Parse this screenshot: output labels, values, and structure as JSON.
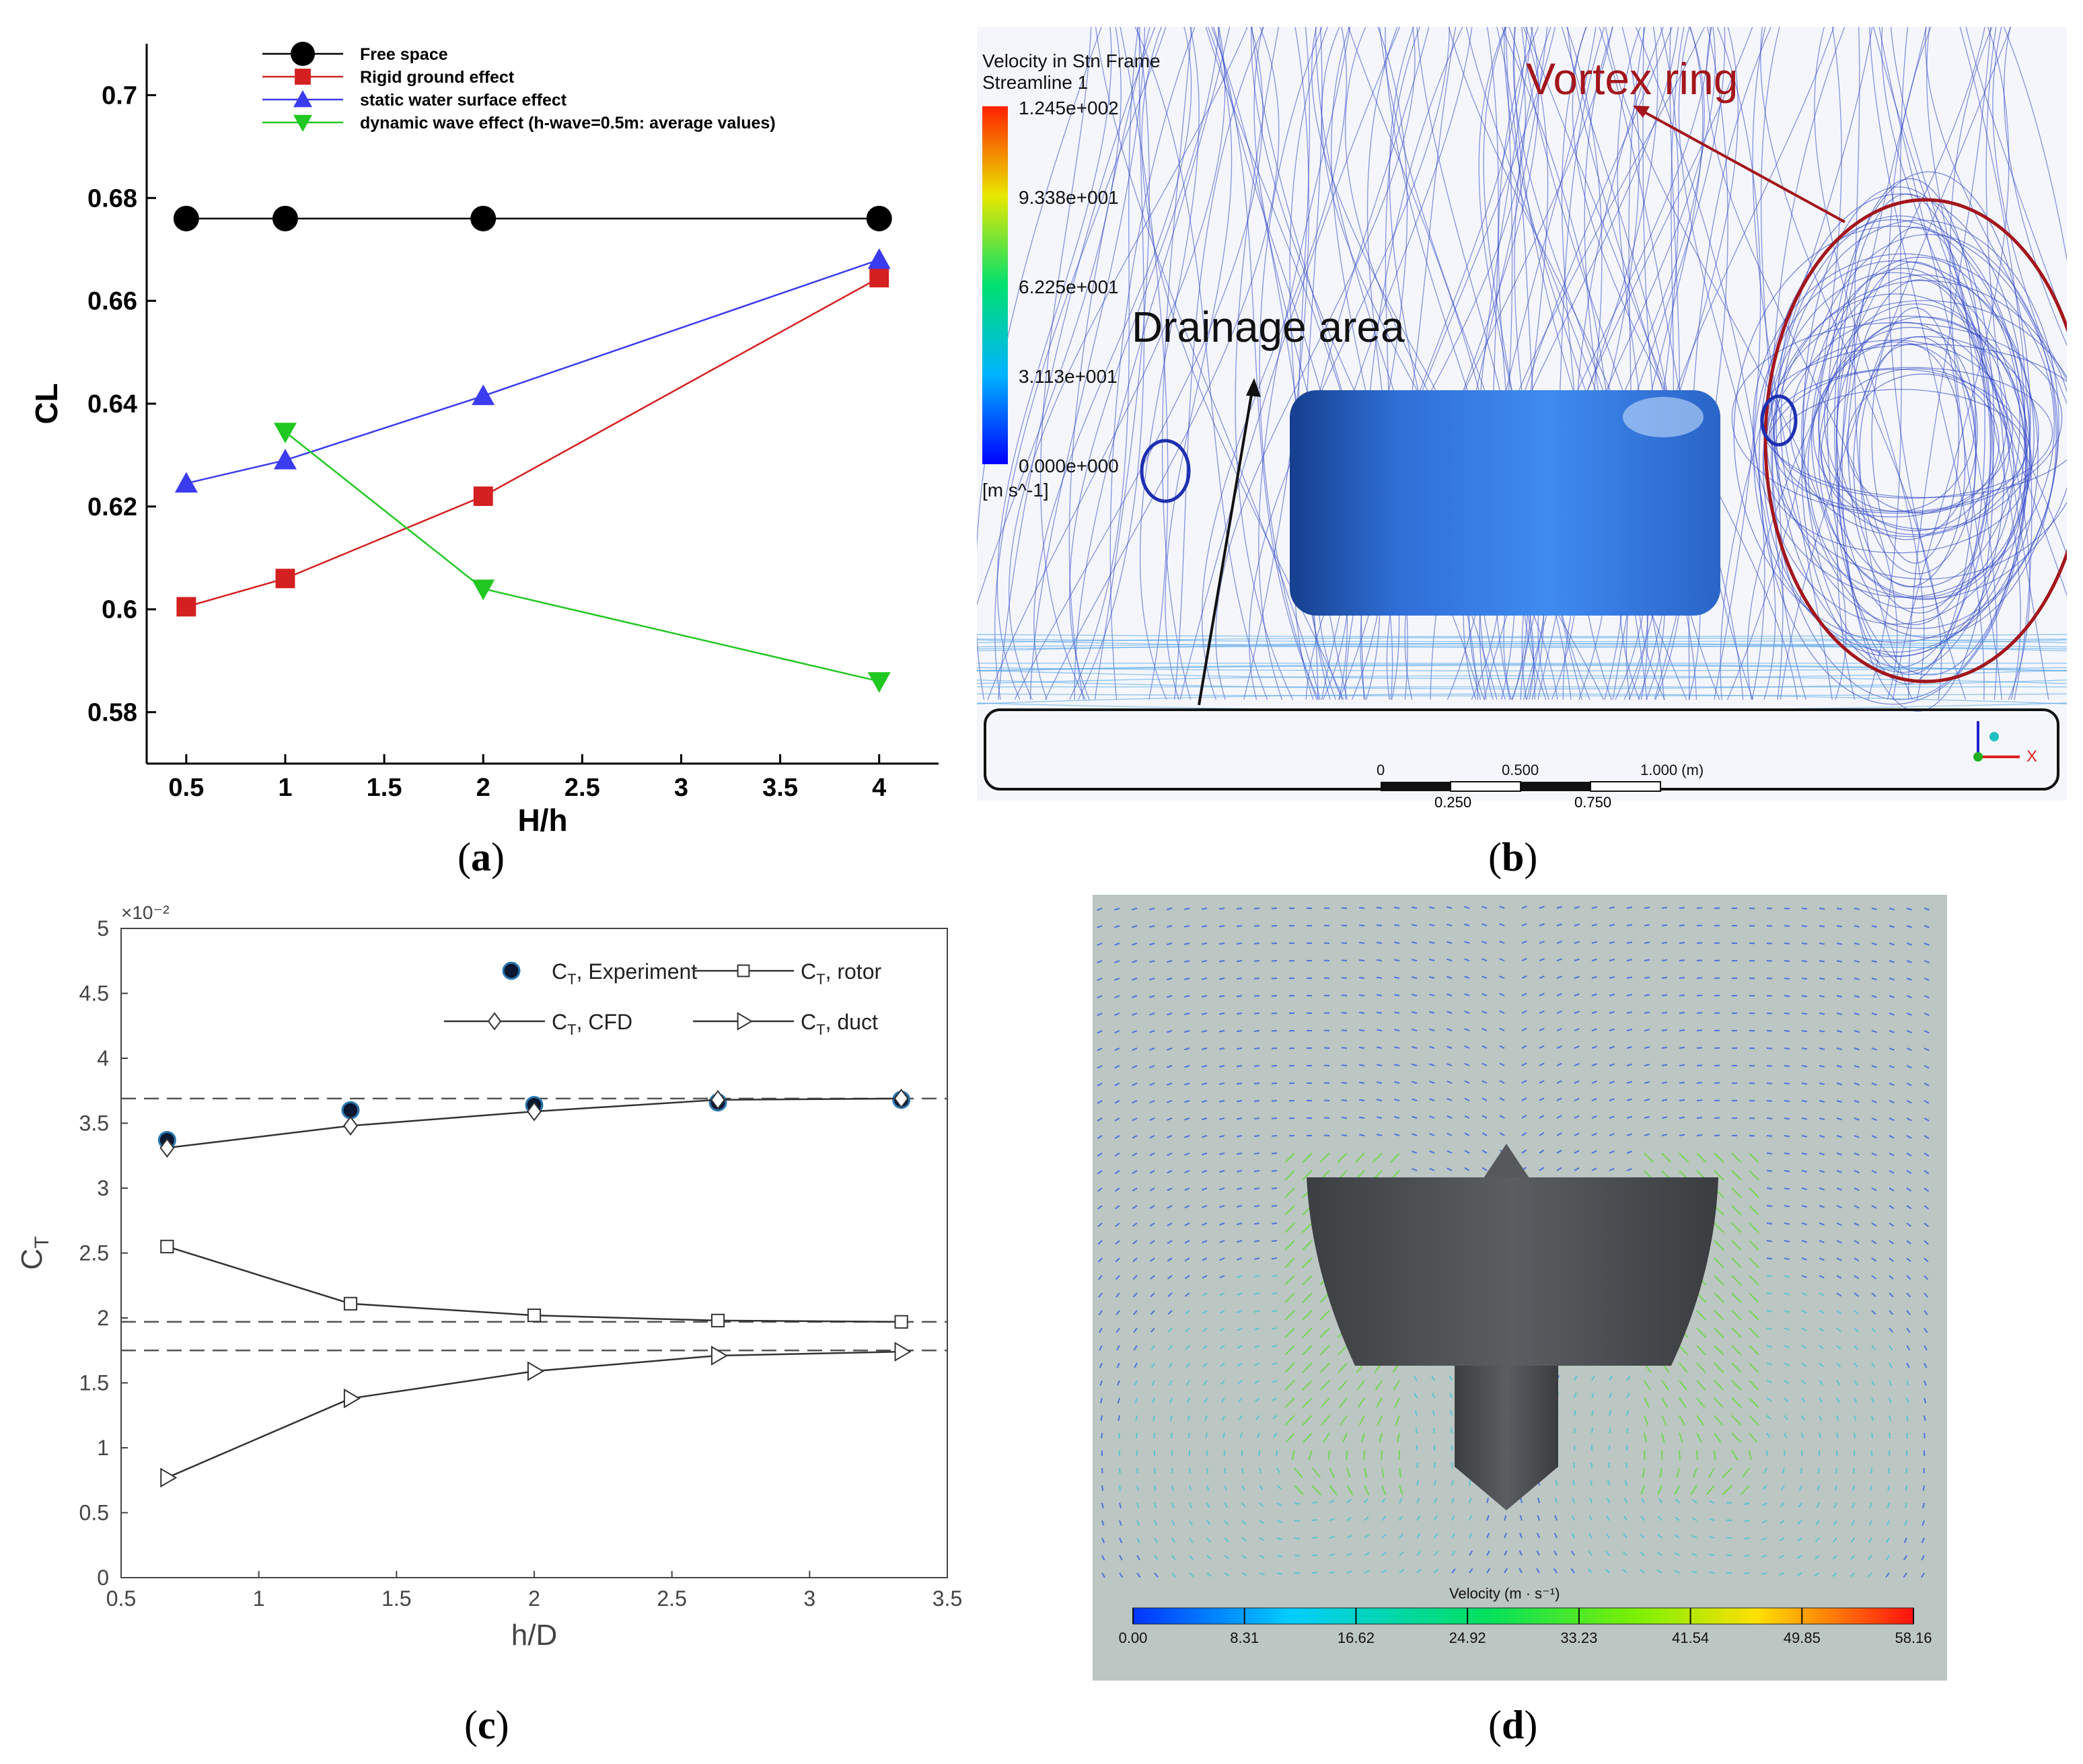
{
  "captions": {
    "a": "a",
    "b": "b",
    "c": "c",
    "d": "d"
  },
  "panel_b": {
    "legend_title_1": "Velocity in Stn Frame",
    "legend_title_2": "Streamline 1",
    "legend_values": [
      "1.245e+002",
      "9.338e+001",
      "6.225e+001",
      "3.113e+001",
      "0.000e+000"
    ],
    "legend_unit": "[m s^-1]",
    "vortex_label": "Vortex ring",
    "drainage_label": "Drainage area",
    "scale_top": [
      "0",
      "0.500",
      "1.000 (m)"
    ],
    "scale_bottom": [
      "0.250",
      "0.750"
    ],
    "axis_x": "X",
    "colors": {
      "stream": "#2a3fc4",
      "annotation": "#a3161b",
      "body": "#2f6fd6"
    }
  },
  "panel_d": {
    "colorbar_title": "Velocity (m · s⁻¹)",
    "colorbar_ticks": [
      "0.00",
      "8.31",
      "16.62",
      "24.92",
      "33.23",
      "41.54",
      "49.85",
      "58.16"
    ],
    "colors": {
      "background": "#bcc6c2",
      "body": "#4a4d50"
    }
  },
  "chart_data": [
    {
      "id": "a",
      "type": "line",
      "xlabel": "H/h",
      "ylabel": "CL",
      "xlim": [
        0.3,
        4.3
      ],
      "ylim": [
        0.57,
        0.71
      ],
      "xticks": [
        0.5,
        1,
        1.5,
        2,
        2.5,
        3,
        3.5,
        4
      ],
      "xtick_labels": [
        "0.5",
        "1",
        "1.5",
        "2",
        "2.5",
        "3",
        "3.5",
        "4"
      ],
      "yticks": [
        0.58,
        0.6,
        0.62,
        0.64,
        0.66,
        0.68,
        0.7
      ],
      "ytick_labels": [
        "0.58",
        "0.6",
        "0.62",
        "0.64",
        "0.66",
        "0.68",
        "0.7"
      ],
      "legend_position": "top-center",
      "series": [
        {
          "name": "Free space",
          "marker": "circle",
          "color": "#000000",
          "x": [
            0.5,
            1,
            2,
            4
          ],
          "y": [
            0.676,
            0.676,
            0.676,
            0.676
          ]
        },
        {
          "name": "Rigid ground effect",
          "marker": "square",
          "color": "#d42020",
          "x": [
            0.5,
            1,
            2,
            4
          ],
          "y": [
            0.6005,
            0.606,
            0.622,
            0.6645
          ]
        },
        {
          "name": "static water surface effect",
          "marker": "triangle-up",
          "color": "#3b3bf0",
          "x": [
            0.5,
            1,
            2,
            4
          ],
          "y": [
            0.6245,
            0.629,
            0.6415,
            0.668
          ]
        },
        {
          "name": "dynamic wave effect (h-wave=0.5m: average values)",
          "marker": "triangle-down",
          "color": "#22c822",
          "x": [
            1,
            2,
            4
          ],
          "y": [
            0.6345,
            0.604,
            0.586
          ]
        }
      ]
    },
    {
      "id": "c",
      "type": "line",
      "xlabel": "h/D",
      "ylabel": "CT",
      "y_multiplier": "×10⁻²",
      "xlim": [
        0.5,
        3.5
      ],
      "ylim": [
        0,
        5
      ],
      "xticks": [
        0.5,
        1,
        1.5,
        2,
        2.5,
        3,
        3.5
      ],
      "xtick_labels": [
        "0.5",
        "1",
        "1.5",
        "2",
        "2.5",
        "3",
        "3.5"
      ],
      "yticks": [
        0,
        0.5,
        1,
        1.5,
        2,
        2.5,
        3,
        3.5,
        4,
        4.5,
        5
      ],
      "ytick_labels": [
        "0",
        "0.5",
        "1",
        "1.5",
        "2",
        "2.5",
        "3",
        "3.5",
        "4",
        "4.5",
        "5"
      ],
      "reference_lines": [
        3.69,
        1.97,
        1.75
      ],
      "legend_position": "top-right",
      "series": [
        {
          "name": "CT, Experiment",
          "marker": "filled-circle",
          "line": false,
          "x": [
            0.667,
            1.333,
            2,
            2.667,
            3.333
          ],
          "y": [
            3.37,
            3.6,
            3.64,
            3.66,
            3.68
          ]
        },
        {
          "name": "CT, CFD",
          "marker": "diamond",
          "line": true,
          "x": [
            0.667,
            1.333,
            2,
            2.667,
            3.333
          ],
          "y": [
            3.31,
            3.48,
            3.59,
            3.68,
            3.69
          ]
        },
        {
          "name": "CT, rotor",
          "marker": "square",
          "line": true,
          "x": [
            0.667,
            1.333,
            2,
            2.667,
            3.333
          ],
          "y": [
            2.55,
            2.11,
            2.02,
            1.98,
            1.97
          ]
        },
        {
          "name": "CT, duct",
          "marker": "triangle-right",
          "line": true,
          "x": [
            0.667,
            1.333,
            2,
            2.667,
            3.333
          ],
          "y": [
            0.77,
            1.38,
            1.59,
            1.71,
            1.74
          ]
        }
      ]
    }
  ]
}
